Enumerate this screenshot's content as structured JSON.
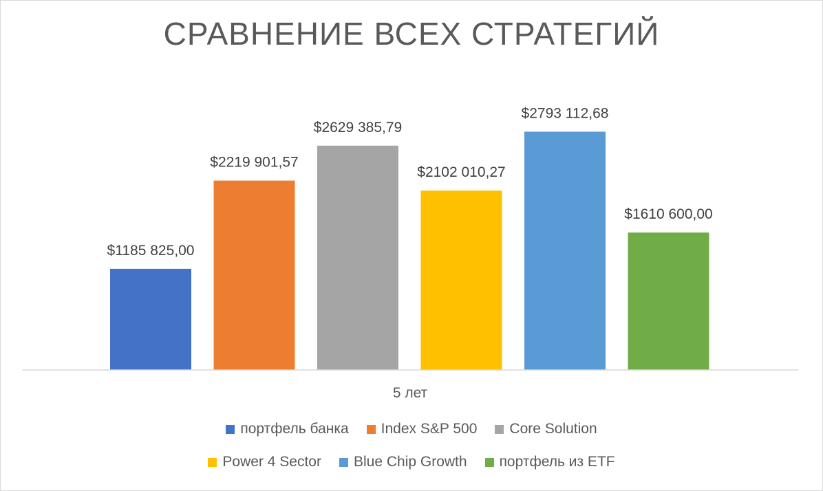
{
  "chart_data": {
    "type": "bar",
    "title": "СРАВНЕНИЕ ВСЕХ СТРАТЕГИЙ",
    "categories": [
      "5 лет"
    ],
    "series": [
      {
        "name": "портфель банка",
        "values": [
          1185825.0
        ],
        "label": "$1185 825,00",
        "color": "#4472c4"
      },
      {
        "name": "Index S&P 500",
        "values": [
          2219901.57
        ],
        "label": "$2219 901,57",
        "color": "#ed7d31"
      },
      {
        "name": "Core Solution",
        "values": [
          2629385.79
        ],
        "label": "$2629 385,79",
        "color": "#a5a5a5"
      },
      {
        "name": "Power 4 Sector",
        "values": [
          2102010.27
        ],
        "label": "$2102 010,27",
        "color": "#ffc000"
      },
      {
        "name": "Blue Chip Growth",
        "values": [
          2793112.68
        ],
        "label": "$2793 112,68",
        "color": "#5b9bd5"
      },
      {
        "name": "портфель из ETF",
        "values": [
          1610600.0
        ],
        "label": "$1610 600,00",
        "color": "#70ad47"
      }
    ],
    "ylim": [
      0,
      3200000
    ],
    "grid": false,
    "legend_position": "bottom"
  }
}
